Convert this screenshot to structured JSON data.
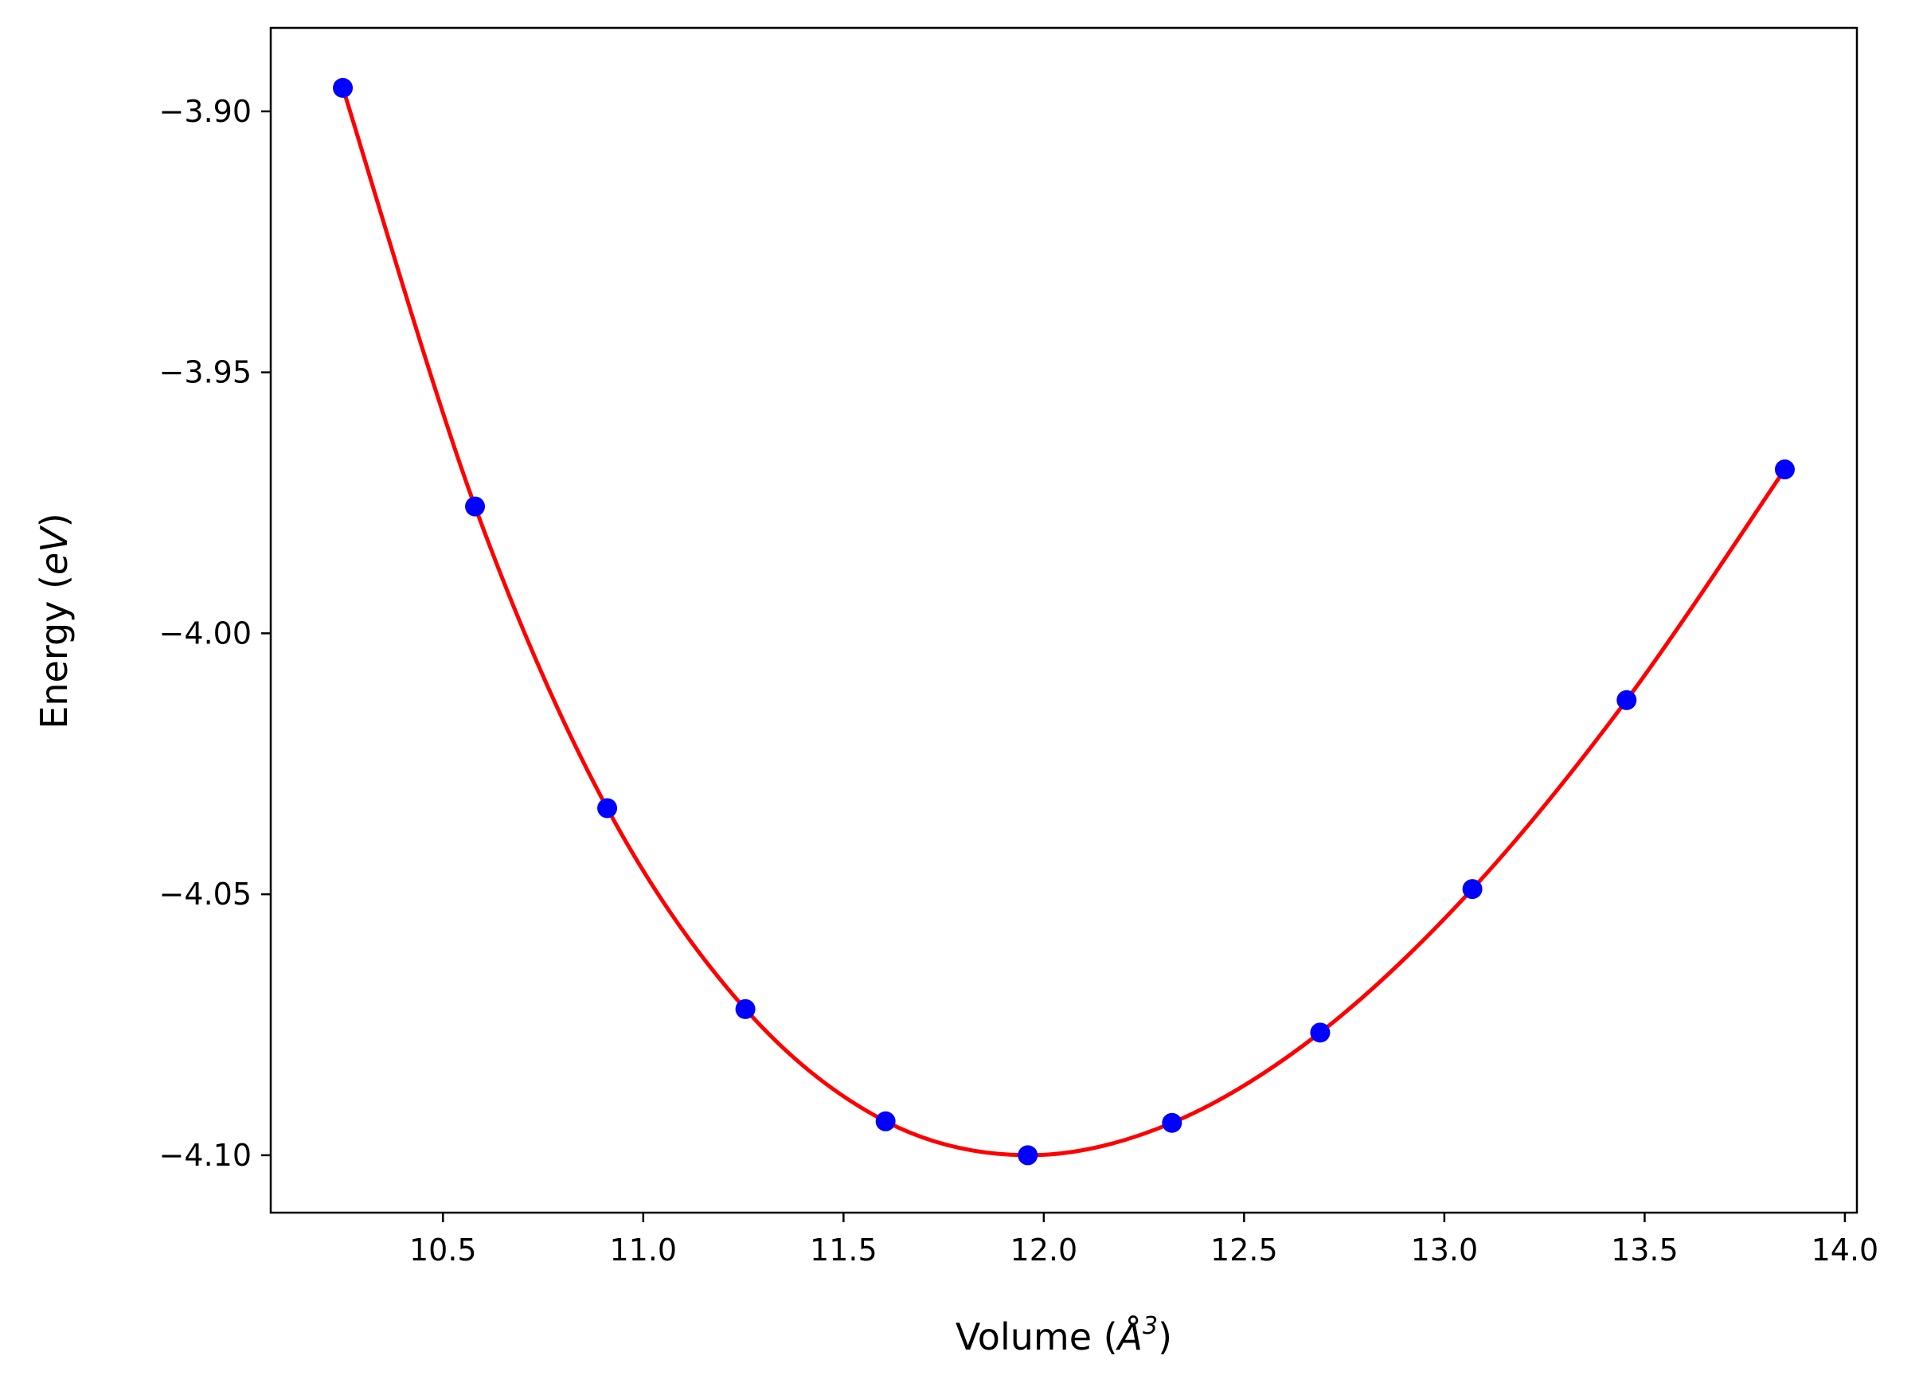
{
  "chart_data": {
    "type": "scatter",
    "title": "",
    "xlabel": {
      "prefix": "Volume (",
      "unit": "Å",
      "sup": "3",
      "suffix": ")"
    },
    "ylabel": {
      "prefix": "Energy (",
      "unit": "eV",
      "suffix": ")"
    },
    "xlim": [
      10.07,
      14.03
    ],
    "ylim": [
      -4.111,
      -3.884
    ],
    "xticks": [
      {
        "value": 10.5,
        "label": "10.5"
      },
      {
        "value": 11.0,
        "label": "11.0"
      },
      {
        "value": 11.5,
        "label": "11.5"
      },
      {
        "value": 12.0,
        "label": "12.0"
      },
      {
        "value": 12.5,
        "label": "12.5"
      },
      {
        "value": 13.0,
        "label": "13.0"
      },
      {
        "value": 13.5,
        "label": "13.5"
      },
      {
        "value": 14.0,
        "label": "14.0"
      }
    ],
    "yticks": [
      {
        "value": -3.9,
        "label": "−3.90"
      },
      {
        "value": -3.95,
        "label": "−3.95"
      },
      {
        "value": -4.0,
        "label": "−4.00"
      },
      {
        "value": -4.05,
        "label": "−4.05"
      },
      {
        "value": -4.1,
        "label": "−4.10"
      }
    ],
    "grid": false,
    "series": [
      {
        "kind": "points",
        "color": "#0000ff",
        "x": [
          10.25,
          10.58,
          10.91,
          11.255,
          11.605,
          11.96,
          12.32,
          12.69,
          13.07,
          13.455,
          13.85
        ],
        "y": [
          -3.8955,
          -3.9757,
          -4.0335,
          -4.072,
          -4.0935,
          -4.1,
          -4.0938,
          -4.0765,
          -4.049,
          -4.0128,
          -3.9686
        ]
      },
      {
        "kind": "fit-curve",
        "color": "#ff0000",
        "x": [
          10.25,
          10.58,
          10.91,
          11.255,
          11.605,
          11.96,
          12.32,
          12.69,
          13.07,
          13.455,
          13.85
        ],
        "y": [
          -3.8955,
          -3.9757,
          -4.0335,
          -4.072,
          -4.0935,
          -4.1,
          -4.0938,
          -4.0765,
          -4.049,
          -4.0128,
          -3.9686
        ]
      }
    ]
  }
}
